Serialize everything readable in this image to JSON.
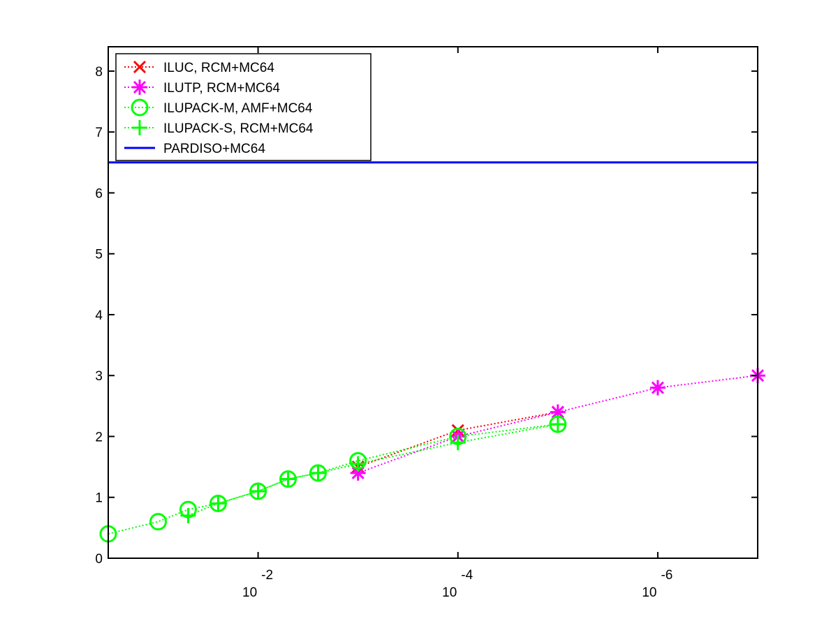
{
  "chart_data": {
    "type": "line",
    "x_scale": "log",
    "x_direction": "reversed",
    "x_range": [
      0.316,
      1e-07
    ],
    "ylim": [
      0,
      8.4
    ],
    "x_ticks": [
      {
        "value": 0.01,
        "base": "10",
        "exponent": "-2"
      },
      {
        "value": 0.0001,
        "base": "10",
        "exponent": "-4"
      },
      {
        "value": 1e-06,
        "base": "10",
        "exponent": "-6"
      }
    ],
    "y_ticks": [
      "0",
      "1",
      "2",
      "3",
      "4",
      "5",
      "6",
      "7",
      "8"
    ],
    "legend_position": "top-left",
    "series": [
      {
        "name": "ILUC, RCM+MC64",
        "color": "#ff0000",
        "marker": "x",
        "line": "dotted",
        "x": [
          0.001,
          0.0001,
          1e-05
        ],
        "y": [
          1.5,
          2.1,
          2.4
        ]
      },
      {
        "name": "ILUTP, RCM+MC64",
        "color": "#ff00ff",
        "marker": "asterisk",
        "line": "dotted",
        "x": [
          0.001,
          0.0001,
          1e-05,
          1e-06,
          1e-07
        ],
        "y": [
          1.4,
          2.0,
          2.4,
          2.8,
          3.0
        ]
      },
      {
        "name": "ILUPACK-M, AMF+MC64",
        "color": "#00ff00",
        "marker": "circle",
        "line": "dotted",
        "x": [
          0.316,
          0.1,
          0.0501,
          0.0251,
          0.01,
          0.00501,
          0.00251,
          0.001,
          0.0001,
          1e-05
        ],
        "y": [
          0.4,
          0.6,
          0.8,
          0.9,
          1.1,
          1.3,
          1.4,
          1.6,
          2.0,
          2.2
        ]
      },
      {
        "name": "ILUPACK-S, RCM+MC64",
        "color": "#00ff00",
        "marker": "plus",
        "line": "dotted",
        "x": [
          0.0501,
          0.0251,
          0.01,
          0.00501,
          0.00251,
          0.001,
          0.0001,
          1e-05
        ],
        "y": [
          0.7,
          0.9,
          1.1,
          1.3,
          1.4,
          1.55,
          1.9,
          2.2
        ]
      },
      {
        "name": "PARDISO+MC64",
        "color": "#0000ff",
        "marker": "none",
        "line": "solid",
        "x": [
          0.316,
          1e-07
        ],
        "y": [
          6.5,
          6.5
        ]
      }
    ]
  }
}
